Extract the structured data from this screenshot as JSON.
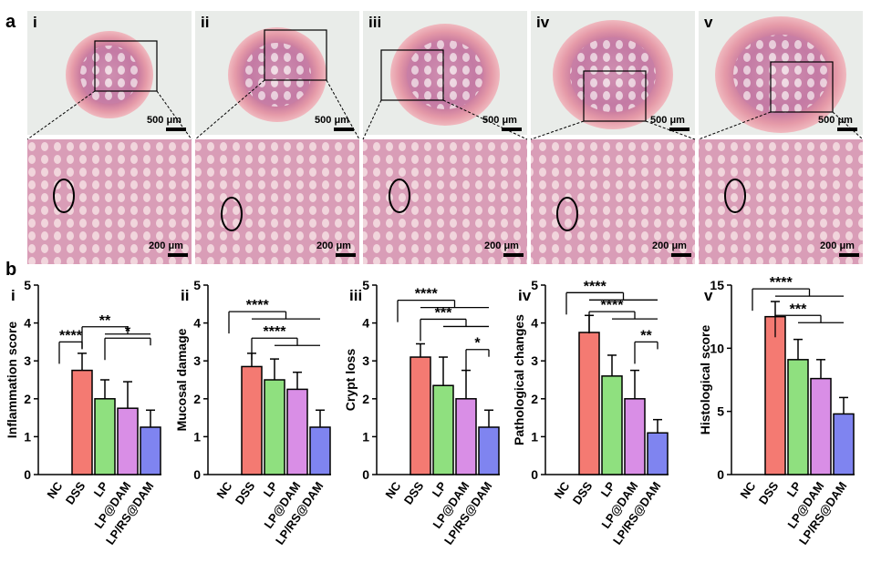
{
  "panel_a": {
    "label": "a",
    "images": [
      {
        "label": "i",
        "scale_top": "500 μm",
        "scale_bottom": "200 μm"
      },
      {
        "label": "ii",
        "scale_top": "500 μm",
        "scale_bottom": "200 μm"
      },
      {
        "label": "iii",
        "scale_top": "500 μm",
        "scale_bottom": "200 μm"
      },
      {
        "label": "iv",
        "scale_top": "500 μm",
        "scale_bottom": "200 μm"
      },
      {
        "label": "v",
        "scale_top": "500 μm",
        "scale_bottom": "200 μm"
      }
    ]
  },
  "panel_b": {
    "label": "b"
  },
  "chart_data": [
    {
      "type": "bar",
      "panel": "i",
      "ylabel": "Inflammation score",
      "categories": [
        "NC",
        "DSS",
        "LP",
        "LP@DAM",
        "LP/RS@DAM"
      ],
      "values": [
        0,
        2.75,
        2.0,
        1.75,
        1.25
      ],
      "errors": [
        0,
        0.45,
        0.5,
        0.7,
        0.45
      ],
      "colors": [
        "#ffffff",
        "#f47a72",
        "#8fe07f",
        "#d98ee6",
        "#7f84f0"
      ],
      "ylim": [
        0,
        5
      ],
      "yticks": [
        0,
        1,
        2,
        3,
        4,
        5
      ],
      "annotations": [
        "****",
        "**",
        "*"
      ]
    },
    {
      "type": "bar",
      "panel": "ii",
      "ylabel": "Mucosal damage",
      "categories": [
        "NC",
        "DSS",
        "LP",
        "LP@DAM",
        "LP/RS@DAM"
      ],
      "values": [
        0,
        2.85,
        2.5,
        2.25,
        1.25
      ],
      "errors": [
        0,
        0.35,
        0.55,
        0.45,
        0.45
      ],
      "colors": [
        "#ffffff",
        "#f47a72",
        "#8fe07f",
        "#d98ee6",
        "#7f84f0"
      ],
      "ylim": [
        0,
        5
      ],
      "yticks": [
        0,
        1,
        2,
        3,
        4,
        5
      ],
      "annotations": [
        "****",
        "****"
      ]
    },
    {
      "type": "bar",
      "panel": "iii",
      "ylabel": "Crypt loss",
      "categories": [
        "NC",
        "DSS",
        "LP",
        "LP@DAM",
        "LP/RS@DAM"
      ],
      "values": [
        0,
        3.1,
        2.35,
        2.0,
        1.25
      ],
      "errors": [
        0,
        0.35,
        0.75,
        0.75,
        0.45
      ],
      "colors": [
        "#ffffff",
        "#f47a72",
        "#8fe07f",
        "#d98ee6",
        "#7f84f0"
      ],
      "ylim": [
        0,
        5
      ],
      "yticks": [
        0,
        1,
        2,
        3,
        4,
        5
      ],
      "annotations": [
        "****",
        "***",
        "*"
      ]
    },
    {
      "type": "bar",
      "panel": "iv",
      "ylabel": "Pathological changes",
      "categories": [
        "NC",
        "DSS",
        "LP",
        "LP@DAM",
        "LP/RS@DAM"
      ],
      "values": [
        0,
        3.75,
        2.6,
        2.0,
        1.1
      ],
      "errors": [
        0,
        0.45,
        0.55,
        0.75,
        0.35
      ],
      "colors": [
        "#ffffff",
        "#f47a72",
        "#8fe07f",
        "#d98ee6",
        "#7f84f0"
      ],
      "ylim": [
        0,
        5
      ],
      "yticks": [
        0,
        1,
        2,
        3,
        4,
        5
      ],
      "annotations": [
        "****",
        "****",
        "**"
      ]
    },
    {
      "type": "bar",
      "panel": "v",
      "ylabel": "Histological score",
      "categories": [
        "NC",
        "DSS",
        "LP",
        "LP@DAM",
        "LP/RS@DAM"
      ],
      "values": [
        0,
        12.5,
        9.1,
        7.6,
        4.8
      ],
      "errors": [
        0,
        1.2,
        1.6,
        1.5,
        1.3
      ],
      "colors": [
        "#ffffff",
        "#f47a72",
        "#8fe07f",
        "#d98ee6",
        "#7f84f0"
      ],
      "ylim": [
        0,
        15
      ],
      "yticks": [
        0,
        5,
        10,
        15
      ],
      "annotations": [
        "****",
        "***"
      ]
    }
  ]
}
